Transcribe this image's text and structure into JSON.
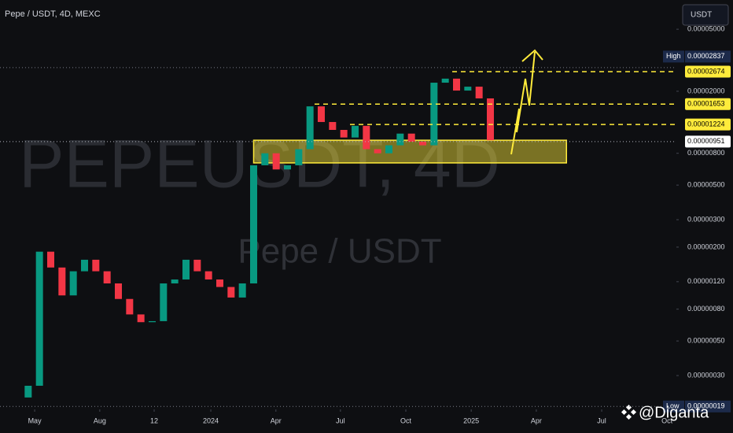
{
  "chart_data": {
    "type": "candlestick",
    "title": "Pepe / USDT, 4D, MEXC",
    "watermark": "PEPEUSDT, 4D",
    "watermark_sub": "Pepe / USDT",
    "currency": "USDT",
    "credit": "@Diganta",
    "log_scale": true,
    "up_color": "#089981",
    "down_color": "#f23645",
    "x": [
      10,
      14,
      18,
      22,
      26,
      30,
      34,
      38,
      42,
      46,
      50,
      54,
      58,
      62,
      66,
      70,
      74,
      78,
      82,
      86,
      90,
      94,
      98,
      102,
      106,
      110,
      114,
      118,
      122,
      126,
      130,
      134,
      138,
      142,
      146,
      150,
      154,
      158,
      162,
      166,
      170,
      174
    ],
    "open": [
      2.17e-07,
      2.58e-07,
      1.87e-06,
      1.48e-06,
      9.8e-07,
      1.4e-06,
      1.66e-06,
      1.4e-06,
      1.17e-06,
      9.3e-07,
      7.4e-07,
      6.6e-07,
      6.7e-07,
      1.17e-06,
      1.24e-06,
      1.66e-06,
      1.4e-06,
      1.24e-06,
      1.11e-06,
      9.5e-07,
      1.17e-06,
      6.7e-06,
      8e-06,
      6.3e-06,
      6.7e-06,
      8.5e-06,
      1.6e-05,
      1.27e-05,
      1.13e-05,
      1.01e-05,
      1.2e-05,
      8.5e-06,
      8e-06,
      9e-06,
      1.07e-05,
      9.5e-06,
      9e-06,
      2.27e-05,
      2.41e-05,
      2.02e-05,
      2.14e-05,
      1.8e-05
    ],
    "high": {
      "name": "High",
      "value": 2.837e-05
    },
    "low": {
      "name": "Low",
      "value": {
        "value": 1.9e-07,
        "label": "0.00000019"
      }
    },
    "close": [
      2.58e-07,
      1.87e-06,
      1.48e-06,
      9.8e-07,
      1.4e-06,
      1.66e-06,
      1.4e-06,
      1.17e-06,
      9.3e-07,
      7.4e-07,
      6.6e-07,
      6.7e-07,
      1.17e-06,
      1.24e-06,
      1.66e-06,
      1.4e-06,
      1.24e-06,
      1.11e-06,
      9.5e-07,
      1.17e-06,
      6.7e-06,
      8e-06,
      6.3e-06,
      6.7e-06,
      8.5e-06,
      1.6e-05,
      1.27e-05,
      1.13e-05,
      1.01e-05,
      1.2e-05,
      8.5e-06,
      8e-06,
      9e-06,
      1.07e-05,
      9.5e-06,
      9e-06,
      2.27e-05,
      2.41e-05,
      2.02e-05,
      2.14e-05,
      1.8e-05,
      9.7e-06
    ],
    "xlim": [
      0,
      240
    ],
    "ylim": [
      1.82e-07,
      7.7e-05
    ],
    "xticks": [
      {
        "value": 12.3,
        "label": "May"
      },
      {
        "value": 35.4,
        "label": "Aug"
      },
      {
        "value": 54.7,
        "label": "12"
      },
      {
        "value": 74.8,
        "label": "2024"
      },
      {
        "value": 97.9,
        "label": "Apr"
      },
      {
        "value": 120.8,
        "label": "Jul"
      },
      {
        "value": 144,
        "label": "Oct"
      },
      {
        "value": 167.2,
        "label": "2025"
      },
      {
        "value": 190.3,
        "label": "Apr"
      },
      {
        "value": 213.5,
        "label": "Jul"
      },
      {
        "value": 236.7,
        "label": "Oct"
      }
    ],
    "yticks": [
      {
        "value": 5e-05,
        "label": "0.00005000"
      },
      {
        "value": 2e-05,
        "label": "0.00002000"
      },
      {
        "value": 8e-06,
        "label": "0.00000800"
      },
      {
        "value": 5e-06,
        "label": "0.00000500"
      },
      {
        "value": 3e-06,
        "label": "0.00000300"
      },
      {
        "value": 2e-06,
        "label": "0.00000200"
      },
      {
        "value": 1.2e-06,
        "label": "0.00000120"
      },
      {
        "value": 8e-07,
        "label": "0.00000080"
      },
      {
        "value": 5e-07,
        "label": "0.00000050"
      },
      {
        "value": 3e-07,
        "label": "0.00000030"
      }
    ],
    "levels": [
      2.674e-05,
      1.653e-05,
      1.224e-05
    ],
    "level_color": "#ffeb3b",
    "zone": {
      "from": 6.94e-06,
      "to": 9.7e-06,
      "x": [
        90,
        201
      ]
    },
    "last": {
      "value": 9.51e-06,
      "label": "0.00000951"
    }
  }
}
